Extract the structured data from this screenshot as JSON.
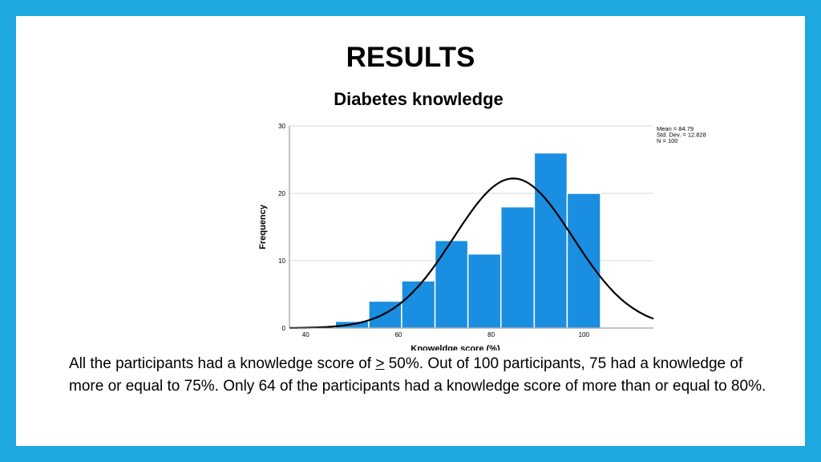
{
  "slide": {
    "title": "RESULTS",
    "paragraph": {
      "before": "All the participants had a knowledge score of ",
      "symbol": ">",
      "after": " 50%. Out of 100 participants, 75 had a knowledge of more or equal to 75%. Only 64 of the participants had a knowledge score of more than or equal to 80%."
    }
  },
  "colors": {
    "frame": "#1ea8e0",
    "bar": "#1a8ee0",
    "curve": "#000000"
  },
  "chart_data": {
    "type": "bar",
    "title": "Diabetes knowledge",
    "xlabel": "Knoweldge score (%)",
    "ylabel": "Frequency",
    "xlim": [
      36.5,
      115
    ],
    "ylim": [
      0,
      30
    ],
    "x_ticks": [
      40,
      60,
      80,
      100
    ],
    "y_ticks": [
      0,
      10,
      20,
      30
    ],
    "bin_width": 7.14,
    "bins": [
      {
        "x0": 46.4,
        "x1": 53.6,
        "count": 1
      },
      {
        "x0": 53.6,
        "x1": 60.7,
        "count": 4
      },
      {
        "x0": 60.7,
        "x1": 67.9,
        "count": 7
      },
      {
        "x0": 67.9,
        "x1": 75.0,
        "count": 13
      },
      {
        "x0": 75.0,
        "x1": 82.1,
        "count": 11
      },
      {
        "x0": 82.1,
        "x1": 89.3,
        "count": 18
      },
      {
        "x0": 89.3,
        "x1": 96.4,
        "count": 26
      },
      {
        "x0": 96.4,
        "x1": 103.6,
        "count": 20
      }
    ],
    "normal_curve": {
      "mean": 84.79,
      "sd": 12.828,
      "n": 100
    },
    "stats_legend": [
      "Mean = 84.79",
      "Std. Dev. = 12.828",
      "N = 100"
    ],
    "grid": true,
    "legend_position": "top-right"
  }
}
